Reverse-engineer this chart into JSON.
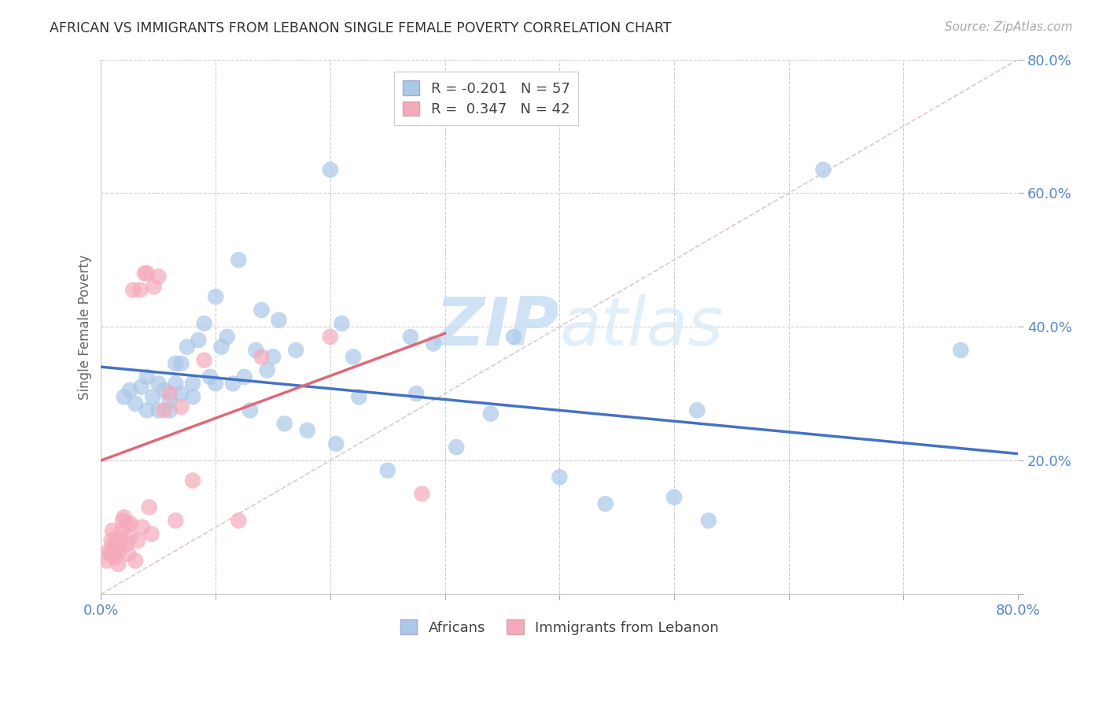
{
  "title": "AFRICAN VS IMMIGRANTS FROM LEBANON SINGLE FEMALE POVERTY CORRELATION CHART",
  "source": "Source: ZipAtlas.com",
  "ylabel": "Single Female Poverty",
  "legend_africans": "Africans",
  "legend_lebanon": "Immigrants from Lebanon",
  "r_africans": -0.201,
  "n_africans": 57,
  "r_lebanon": 0.347,
  "n_lebanon": 42,
  "xlim": [
    0.0,
    0.8
  ],
  "ylim": [
    0.0,
    0.8
  ],
  "color_africans": "#aac8e8",
  "color_lebanon": "#f5aabb",
  "line_color_africans": "#4472c4",
  "line_color_lebanon": "#e06878",
  "diagonal_color": "#e0c8c8",
  "africans_x": [
    0.02,
    0.025,
    0.03,
    0.035,
    0.04,
    0.04,
    0.045,
    0.05,
    0.05,
    0.055,
    0.06,
    0.06,
    0.065,
    0.065,
    0.07,
    0.07,
    0.075,
    0.08,
    0.08,
    0.085,
    0.09,
    0.095,
    0.1,
    0.1,
    0.105,
    0.11,
    0.115,
    0.12,
    0.125,
    0.13,
    0.135,
    0.14,
    0.145,
    0.15,
    0.155,
    0.16,
    0.17,
    0.18,
    0.2,
    0.205,
    0.21,
    0.22,
    0.225,
    0.25,
    0.27,
    0.275,
    0.29,
    0.31,
    0.34,
    0.36,
    0.4,
    0.44,
    0.5,
    0.52,
    0.53,
    0.63,
    0.75
  ],
  "africans_y": [
    0.295,
    0.305,
    0.285,
    0.31,
    0.325,
    0.275,
    0.295,
    0.275,
    0.315,
    0.305,
    0.29,
    0.275,
    0.315,
    0.345,
    0.3,
    0.345,
    0.37,
    0.295,
    0.315,
    0.38,
    0.405,
    0.325,
    0.315,
    0.445,
    0.37,
    0.385,
    0.315,
    0.5,
    0.325,
    0.275,
    0.365,
    0.425,
    0.335,
    0.355,
    0.41,
    0.255,
    0.365,
    0.245,
    0.635,
    0.225,
    0.405,
    0.355,
    0.295,
    0.185,
    0.385,
    0.3,
    0.375,
    0.22,
    0.27,
    0.385,
    0.175,
    0.135,
    0.145,
    0.275,
    0.11,
    0.635,
    0.365
  ],
  "lebanon_x": [
    0.005,
    0.007,
    0.008,
    0.009,
    0.01,
    0.01,
    0.011,
    0.012,
    0.013,
    0.014,
    0.015,
    0.016,
    0.017,
    0.018,
    0.019,
    0.02,
    0.022,
    0.023,
    0.024,
    0.025,
    0.026,
    0.028,
    0.03,
    0.032,
    0.034,
    0.036,
    0.038,
    0.04,
    0.042,
    0.044,
    0.046,
    0.05,
    0.055,
    0.06,
    0.065,
    0.07,
    0.08,
    0.09,
    0.12,
    0.14,
    0.2,
    0.28
  ],
  "lebanon_y": [
    0.05,
    0.065,
    0.06,
    0.08,
    0.095,
    0.06,
    0.075,
    0.055,
    0.07,
    0.085,
    0.045,
    0.065,
    0.08,
    0.095,
    0.11,
    0.115,
    0.075,
    0.105,
    0.06,
    0.085,
    0.105,
    0.455,
    0.05,
    0.08,
    0.455,
    0.1,
    0.48,
    0.48,
    0.13,
    0.09,
    0.46,
    0.475,
    0.275,
    0.3,
    0.11,
    0.28,
    0.17,
    0.35,
    0.11,
    0.355,
    0.385,
    0.15
  ],
  "trend_africans": [
    0.0,
    0.8,
    0.34,
    0.21
  ],
  "trend_lebanon": [
    0.0,
    0.3,
    0.2,
    0.39
  ]
}
